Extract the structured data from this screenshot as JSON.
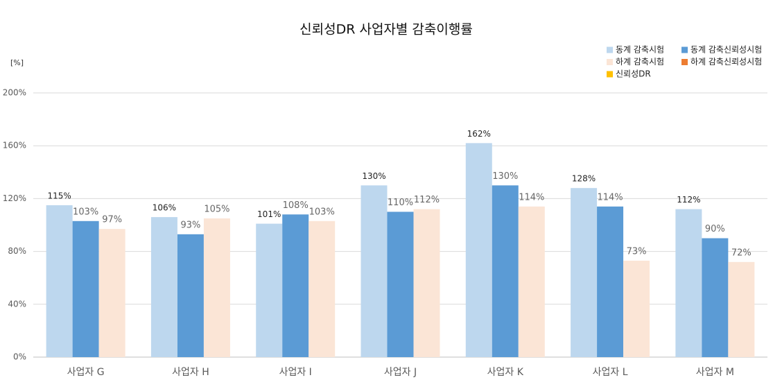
{
  "chart_data": {
    "type": "bar",
    "title": "신뢰성DR 사업자별 감축이행률",
    "y_label": "[%]",
    "categories": [
      "사업자 G",
      "사업자 H",
      "사업자 I",
      "사업자 J",
      "사업자 K",
      "사업자 L",
      "사업자 M"
    ],
    "series": [
      {
        "name": "동계 감축시험",
        "color": "#bdd7ee",
        "values": [
          115,
          106,
          101,
          130,
          162,
          128,
          112
        ],
        "value_labels": [
          "115%",
          "106%",
          "101%",
          "130%",
          "162%",
          "128%",
          "112%"
        ]
      },
      {
        "name": "동계 감축신뢰성시험",
        "color": "#5b9bd5",
        "values": [
          103,
          93,
          108,
          110,
          130,
          114,
          90
        ],
        "value_labels": [
          "103%",
          "93%",
          "108%",
          "110%",
          "130%",
          "114%",
          "90%"
        ]
      },
      {
        "name": "하계 감축시험",
        "color": "#fbe5d6",
        "values": [
          97,
          105,
          103,
          112,
          114,
          73,
          72
        ],
        "value_labels": [
          "97%",
          "105%",
          "103%",
          "112%",
          "114%",
          "73%",
          "72%"
        ]
      },
      {
        "name": "하계 감축신뢰성시험",
        "color": "#ed7d31",
        "values": [
          null,
          null,
          null,
          null,
          null,
          null,
          null
        ]
      },
      {
        "name": "신뢰성DR",
        "color": "#ffc000",
        "values": [
          null,
          null,
          null,
          null,
          null,
          null,
          null
        ]
      }
    ],
    "ylim": [
      0,
      200
    ],
    "yticks": [
      {
        "value": 0,
        "label": "0%"
      },
      {
        "value": 40,
        "label": "40%"
      },
      {
        "value": 80,
        "label": "80%"
      },
      {
        "value": 120,
        "label": "120%"
      },
      {
        "value": 160,
        "label": "160%"
      },
      {
        "value": 200,
        "label": "200%"
      }
    ],
    "grid": true,
    "legend": "top-right"
  }
}
